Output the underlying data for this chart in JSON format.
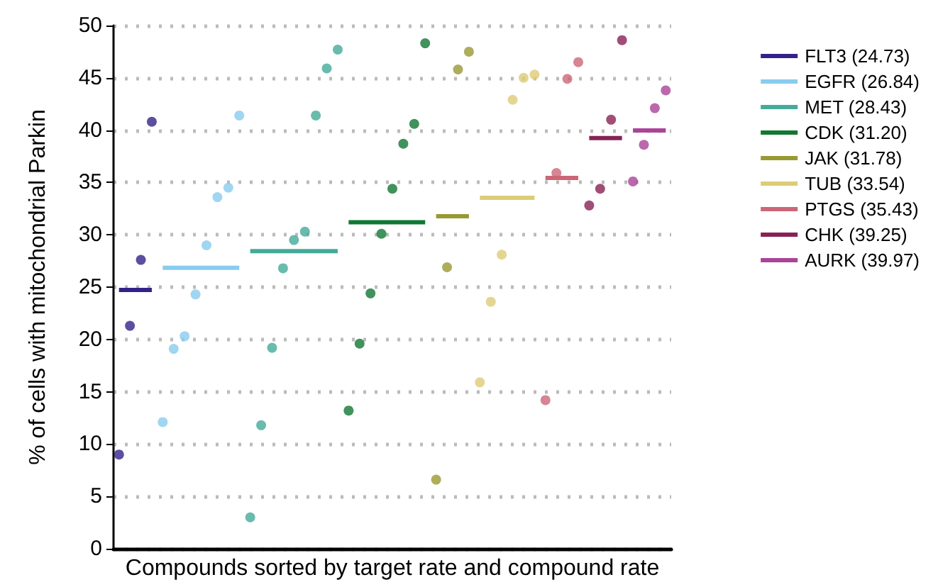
{
  "chart_data": {
    "type": "scatter",
    "xlabel": "Compounds sorted by target rate and compound rate",
    "ylabel": "% of cells with mitochondrial Parkin",
    "categories": [
      null,
      null,
      null,
      null,
      null,
      null,
      null,
      null,
      null,
      null,
      null,
      null,
      null,
      null,
      null,
      null,
      null,
      null,
      null,
      null,
      null,
      null,
      null,
      null,
      null,
      null,
      null,
      null,
      null,
      null,
      null,
      null,
      null,
      null,
      null,
      null,
      null,
      null,
      null,
      null,
      null,
      null,
      null,
      null,
      null,
      null,
      null,
      null,
      null,
      null,
      null
    ],
    "ylim": [
      0,
      50
    ],
    "yticks": [
      0,
      5,
      10,
      15,
      20,
      25,
      30,
      35,
      40,
      45,
      50
    ],
    "grid": "y",
    "legend": "right",
    "tick_labels": "y",
    "series": [
      {
        "color": "#332288",
        "marker": "circle",
        "values": [
          9.0,
          21.3,
          27.6,
          40.8,
          null,
          null,
          null,
          null,
          null,
          null,
          null,
          null,
          null,
          null,
          null,
          null,
          null,
          null,
          null,
          null,
          null,
          null,
          null,
          null,
          null,
          null,
          null,
          null,
          null,
          null,
          null,
          null,
          null,
          null,
          null,
          null,
          null,
          null,
          null,
          null,
          null,
          null,
          null,
          null,
          null,
          null,
          null,
          null,
          null,
          null,
          null
        ]
      },
      {
        "color": "#88ccee",
        "marker": "circle",
        "values": [
          null,
          null,
          null,
          null,
          12.1,
          19.1,
          20.3,
          24.3,
          29.0,
          33.6,
          34.5,
          41.4,
          null,
          null,
          null,
          null,
          null,
          null,
          null,
          null,
          null,
          null,
          null,
          null,
          null,
          null,
          null,
          null,
          null,
          null,
          null,
          null,
          null,
          null,
          null,
          null,
          null,
          null,
          null,
          null,
          null,
          null,
          null,
          null,
          null,
          null,
          null,
          null,
          null,
          null,
          null
        ]
      },
      {
        "color": "#44aa99",
        "marker": "circle",
        "values": [
          null,
          null,
          null,
          null,
          null,
          null,
          null,
          null,
          null,
          null,
          null,
          null,
          3.0,
          11.8,
          19.2,
          26.8,
          29.5,
          30.3,
          41.4,
          45.9,
          47.7,
          null,
          null,
          null,
          null,
          null,
          null,
          null,
          null,
          null,
          null,
          null,
          null,
          null,
          null,
          null,
          null,
          null,
          null,
          null,
          null,
          null,
          null,
          null,
          null,
          null,
          null,
          null,
          null,
          null,
          null
        ]
      },
      {
        "color": "#117733",
        "marker": "circle",
        "values": [
          null,
          null,
          null,
          null,
          null,
          null,
          null,
          null,
          null,
          null,
          null,
          null,
          null,
          null,
          null,
          null,
          null,
          null,
          null,
          null,
          null,
          13.2,
          19.6,
          24.4,
          30.1,
          34.4,
          38.7,
          40.6,
          48.3,
          null,
          null,
          null,
          null,
          null,
          null,
          null,
          null,
          null,
          null,
          null,
          null,
          null,
          null,
          null,
          null,
          null,
          null,
          null,
          null,
          null,
          null
        ]
      },
      {
        "color": "#999933",
        "marker": "circle",
        "values": [
          null,
          null,
          null,
          null,
          null,
          null,
          null,
          null,
          null,
          null,
          null,
          null,
          null,
          null,
          null,
          null,
          null,
          null,
          null,
          null,
          null,
          null,
          null,
          null,
          null,
          null,
          null,
          null,
          null,
          6.6,
          26.9,
          45.8,
          47.5,
          null,
          null,
          null,
          null,
          null,
          null,
          null,
          null,
          null,
          null,
          null,
          null,
          null,
          null,
          null,
          null,
          null,
          null
        ]
      },
      {
        "color": "#ddcc77",
        "marker": "circle",
        "values": [
          null,
          null,
          null,
          null,
          null,
          null,
          null,
          null,
          null,
          null,
          null,
          null,
          null,
          null,
          null,
          null,
          null,
          null,
          null,
          null,
          null,
          null,
          null,
          null,
          null,
          null,
          null,
          null,
          null,
          null,
          null,
          null,
          null,
          15.9,
          23.6,
          28.1,
          42.9,
          45.0,
          45.3,
          null,
          null,
          null,
          null,
          null,
          null,
          null,
          null,
          null,
          null,
          null,
          null
        ]
      },
      {
        "color": "#cc6677",
        "marker": "circle",
        "values": [
          null,
          null,
          null,
          null,
          null,
          null,
          null,
          null,
          null,
          null,
          null,
          null,
          null,
          null,
          null,
          null,
          null,
          null,
          null,
          null,
          null,
          null,
          null,
          null,
          null,
          null,
          null,
          null,
          null,
          null,
          null,
          null,
          null,
          null,
          null,
          null,
          null,
          null,
          null,
          14.2,
          35.9,
          44.9,
          46.5,
          null,
          null,
          null,
          null,
          null,
          null,
          null,
          null
        ]
      },
      {
        "color": "#882255",
        "marker": "circle",
        "values": [
          null,
          null,
          null,
          null,
          null,
          null,
          null,
          null,
          null,
          null,
          null,
          null,
          null,
          null,
          null,
          null,
          null,
          null,
          null,
          null,
          null,
          null,
          null,
          null,
          null,
          null,
          null,
          null,
          null,
          null,
          null,
          null,
          null,
          null,
          null,
          null,
          null,
          null,
          null,
          null,
          null,
          null,
          null,
          32.8,
          34.4,
          41.0,
          48.6,
          null,
          null,
          null,
          null
        ]
      },
      {
        "color": "#aa4499",
        "marker": "circle",
        "values": [
          null,
          null,
          null,
          null,
          null,
          null,
          null,
          null,
          null,
          null,
          null,
          null,
          null,
          null,
          null,
          null,
          null,
          null,
          null,
          null,
          null,
          null,
          null,
          null,
          null,
          null,
          null,
          null,
          null,
          null,
          null,
          null,
          null,
          null,
          null,
          null,
          null,
          null,
          null,
          null,
          null,
          null,
          null,
          null,
          null,
          null,
          null,
          35.1,
          38.6,
          42.1,
          43.8
        ]
      },
      {
        "type": "line",
        "name": "FLT3 (24.73)",
        "color": "#332288",
        "marker": "none",
        "values": [
          24.73,
          24.73,
          24.73,
          24.73,
          null,
          null,
          null,
          null,
          null,
          null,
          null,
          null,
          null,
          null,
          null,
          null,
          null,
          null,
          null,
          null,
          null,
          null,
          null,
          null,
          null,
          null,
          null,
          null,
          null,
          null,
          null,
          null,
          null,
          null,
          null,
          null,
          null,
          null,
          null,
          null,
          null,
          null,
          null,
          null,
          null,
          null,
          null,
          null,
          null,
          null,
          null
        ]
      },
      {
        "type": "line",
        "name": "EGFR (26.84)",
        "color": "#88ccee",
        "marker": "none",
        "values": [
          null,
          null,
          null,
          null,
          26.84,
          26.84,
          26.84,
          26.84,
          26.84,
          26.84,
          26.84,
          26.84,
          null,
          null,
          null,
          null,
          null,
          null,
          null,
          null,
          null,
          null,
          null,
          null,
          null,
          null,
          null,
          null,
          null,
          null,
          null,
          null,
          null,
          null,
          null,
          null,
          null,
          null,
          null,
          null,
          null,
          null,
          null,
          null,
          null,
          null,
          null,
          null,
          null,
          null,
          null
        ]
      },
      {
        "type": "line",
        "name": "MET (28.43)",
        "color": "#44aa99",
        "marker": "none",
        "values": [
          null,
          null,
          null,
          null,
          null,
          null,
          null,
          null,
          null,
          null,
          null,
          null,
          28.43,
          28.43,
          28.43,
          28.43,
          28.43,
          28.43,
          28.43,
          28.43,
          28.43,
          null,
          null,
          null,
          null,
          null,
          null,
          null,
          null,
          null,
          null,
          null,
          null,
          null,
          null,
          null,
          null,
          null,
          null,
          null,
          null,
          null,
          null,
          null,
          null,
          null,
          null,
          null,
          null,
          null,
          null
        ]
      },
      {
        "type": "line",
        "name": "CDK (31.20)",
        "color": "#117733",
        "marker": "none",
        "values": [
          null,
          null,
          null,
          null,
          null,
          null,
          null,
          null,
          null,
          null,
          null,
          null,
          null,
          null,
          null,
          null,
          null,
          null,
          null,
          null,
          null,
          31.2,
          31.2,
          31.2,
          31.2,
          31.2,
          31.2,
          31.2,
          31.2,
          null,
          null,
          null,
          null,
          null,
          null,
          null,
          null,
          null,
          null,
          null,
          null,
          null,
          null,
          null,
          null,
          null,
          null,
          null,
          null,
          null,
          null
        ]
      },
      {
        "type": "line",
        "name": "JAK (31.78)",
        "color": "#999933",
        "marker": "none",
        "values": [
          null,
          null,
          null,
          null,
          null,
          null,
          null,
          null,
          null,
          null,
          null,
          null,
          null,
          null,
          null,
          null,
          null,
          null,
          null,
          null,
          null,
          null,
          null,
          null,
          null,
          null,
          null,
          null,
          null,
          31.78,
          31.78,
          31.78,
          31.78,
          null,
          null,
          null,
          null,
          null,
          null,
          null,
          null,
          null,
          null,
          null,
          null,
          null,
          null,
          null,
          null,
          null,
          null
        ]
      },
      {
        "type": "line",
        "name": "TUB (33.54)",
        "color": "#ddcc77",
        "marker": "none",
        "values": [
          null,
          null,
          null,
          null,
          null,
          null,
          null,
          null,
          null,
          null,
          null,
          null,
          null,
          null,
          null,
          null,
          null,
          null,
          null,
          null,
          null,
          null,
          null,
          null,
          null,
          null,
          null,
          null,
          null,
          null,
          null,
          null,
          null,
          33.54,
          33.54,
          33.54,
          33.54,
          33.54,
          33.54,
          null,
          null,
          null,
          null,
          null,
          null,
          null,
          null,
          null,
          null,
          null,
          null
        ]
      },
      {
        "type": "line",
        "name": "PTGS (35.43)",
        "color": "#cc6677",
        "marker": "none",
        "values": [
          null,
          null,
          null,
          null,
          null,
          null,
          null,
          null,
          null,
          null,
          null,
          null,
          null,
          null,
          null,
          null,
          null,
          null,
          null,
          null,
          null,
          null,
          null,
          null,
          null,
          null,
          null,
          null,
          null,
          null,
          null,
          null,
          null,
          null,
          null,
          null,
          null,
          null,
          null,
          35.43,
          35.43,
          35.43,
          35.43,
          null,
          null,
          null,
          null,
          null,
          null,
          null,
          null
        ]
      },
      {
        "type": "line",
        "name": "CHK (39.25)",
        "color": "#882255",
        "marker": "none",
        "values": [
          null,
          null,
          null,
          null,
          null,
          null,
          null,
          null,
          null,
          null,
          null,
          null,
          null,
          null,
          null,
          null,
          null,
          null,
          null,
          null,
          null,
          null,
          null,
          null,
          null,
          null,
          null,
          null,
          null,
          null,
          null,
          null,
          null,
          null,
          null,
          null,
          null,
          null,
          null,
          null,
          null,
          null,
          null,
          39.25,
          39.25,
          39.25,
          39.25,
          null,
          null,
          null,
          null
        ]
      },
      {
        "type": "line",
        "name": "AURK (39.97)",
        "color": "#aa4499",
        "marker": "none",
        "values": [
          null,
          null,
          null,
          null,
          null,
          null,
          null,
          null,
          null,
          null,
          null,
          null,
          null,
          null,
          null,
          null,
          null,
          null,
          null,
          null,
          null,
          null,
          null,
          null,
          null,
          null,
          null,
          null,
          null,
          null,
          null,
          null,
          null,
          null,
          null,
          null,
          null,
          null,
          null,
          null,
          null,
          null,
          null,
          null,
          null,
          null,
          null,
          39.97,
          39.97,
          39.97,
          39.97
        ]
      }
    ]
  }
}
